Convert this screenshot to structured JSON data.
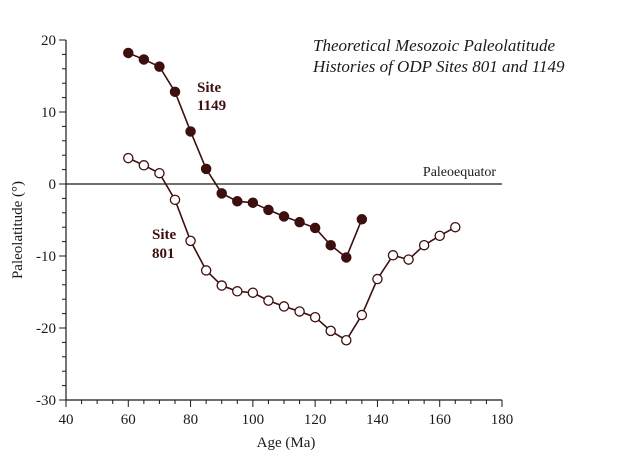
{
  "chart_data": {
    "type": "line",
    "title": [
      "Theoretical Mesozoic Paleolatitude",
      "Histories of ODP Sites 801 and 1149"
    ],
    "xlabel": "Age (Ma)",
    "ylabel": "Paleolatitude (°)",
    "xlim": [
      40,
      180
    ],
    "ylim": [
      -30,
      20
    ],
    "xticks": [
      40,
      60,
      80,
      100,
      120,
      140,
      160,
      180
    ],
    "yticks": [
      20,
      10,
      0,
      -10,
      -20,
      -30
    ],
    "reference_line": {
      "y": 0,
      "label": "Paleoequator"
    },
    "grid": false,
    "series": [
      {
        "name": "Site 1149",
        "label_lines": [
          "Site",
          "1149"
        ],
        "marker": "filled-circle",
        "color": "#3d0f0f",
        "x": [
          60,
          65,
          70,
          75,
          80,
          85,
          90,
          95,
          100,
          105,
          110,
          115,
          120,
          125,
          130,
          135
        ],
        "y": [
          18.2,
          17.3,
          16.3,
          12.8,
          7.3,
          2.1,
          -1.3,
          -2.4,
          -2.6,
          -3.6,
          -4.5,
          -5.3,
          -6.1,
          -8.5,
          -10.2,
          -4.9
        ]
      },
      {
        "name": "Site 801",
        "label_lines": [
          "Site",
          "801"
        ],
        "marker": "open-circle",
        "color": "#3d0f0f",
        "x": [
          60,
          65,
          70,
          75,
          80,
          85,
          90,
          95,
          100,
          105,
          110,
          115,
          120,
          125,
          130,
          135,
          140,
          145,
          150,
          155,
          160,
          165
        ],
        "y": [
          3.6,
          2.6,
          1.5,
          -2.2,
          -7.9,
          -12.0,
          -14.1,
          -14.9,
          -15.1,
          -16.2,
          -17.0,
          -17.7,
          -18.5,
          -20.4,
          -21.7,
          -18.2,
          -13.2,
          -9.9,
          -10.5,
          -8.5,
          -7.2,
          -6.0
        ]
      }
    ]
  }
}
